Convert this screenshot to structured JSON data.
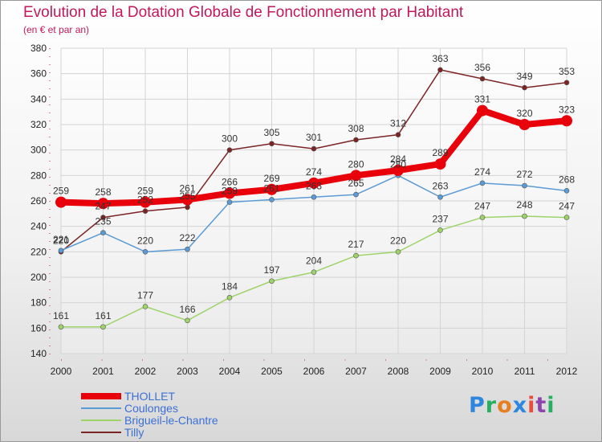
{
  "chart_data": {
    "type": "line",
    "title": "Evolution de la Dotation Globale de Fonctionnement par Habitant",
    "subtitle": "(en € et par an)",
    "x": [
      "2000",
      "2001",
      "2002",
      "2003",
      "2004",
      "2005",
      "2006",
      "2007",
      "2008",
      "2009",
      "2010",
      "2011",
      "2012"
    ],
    "ylim": [
      140,
      380
    ],
    "yticks": [
      140,
      160,
      180,
      200,
      220,
      240,
      260,
      280,
      300,
      320,
      340,
      360,
      380
    ],
    "grid": true,
    "legend_position": "bottom-left",
    "series": [
      {
        "name": "THOLLET",
        "color": "#e8000b",
        "values": [
          259,
          258,
          259,
          261,
          266,
          269,
          274,
          280,
          284,
          289,
          331,
          320,
          323
        ]
      },
      {
        "name": "Coulonges",
        "color": "#5b9bd5",
        "values": [
          221,
          235,
          220,
          222,
          259,
          261,
          263,
          265,
          280,
          263,
          274,
          272,
          268
        ]
      },
      {
        "name": "Brigueil-le-Chantre",
        "color": "#9ed36a",
        "values": [
          161,
          161,
          177,
          166,
          184,
          197,
          204,
          217,
          220,
          237,
          247,
          248,
          247
        ]
      },
      {
        "name": "Tilly",
        "color": "#7b2424",
        "values": [
          220,
          247,
          252,
          255,
          300,
          305,
          301,
          308,
          312,
          363,
          356,
          349,
          353
        ]
      }
    ],
    "labels": {
      "THOLLET": [
        "259",
        "258",
        "259",
        "261",
        "266",
        "269",
        "274",
        "280",
        "284",
        "289",
        "331",
        "320",
        "323"
      ],
      "Coulonges": [
        "221",
        "235",
        "220",
        "222",
        "259",
        "261",
        "263",
        "265",
        "280",
        "263",
        "274",
        "272",
        "268"
      ],
      "Brigueil-le-Chantre": [
        "161",
        "161",
        "177",
        "166",
        "184",
        "197",
        "204",
        "217",
        "220",
        "237",
        "247",
        "248",
        "247"
      ],
      "Tilly": [
        "220",
        "247",
        "252",
        "255",
        "300",
        "305",
        "301",
        "308",
        "312",
        "363",
        "356",
        "349",
        "353"
      ]
    }
  },
  "logo": {
    "p": "P",
    "r": "r",
    "o": "o",
    "x": "x",
    "i1": "i",
    "t": "t",
    "i2": "i"
  }
}
